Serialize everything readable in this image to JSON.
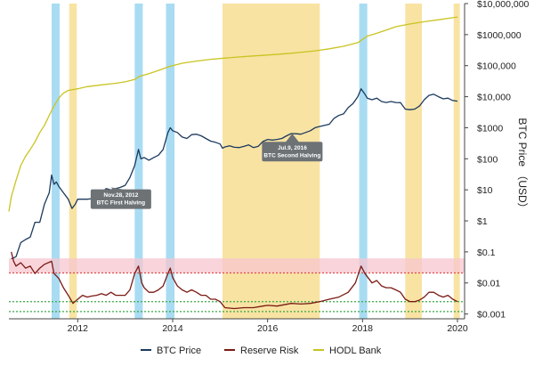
{
  "chart_data": {
    "type": "line",
    "y_scale": "log",
    "xlim": [
      2010.55,
      2020.15
    ],
    "ylim": [
      0.0007,
      10000000
    ],
    "y_axis_label": "BTC Price （USD）",
    "x_ticks": [
      {
        "value": 2012,
        "label": "2012"
      },
      {
        "value": 2014,
        "label": "2014"
      },
      {
        "value": 2016,
        "label": "2016"
      },
      {
        "value": 2018,
        "label": "2018"
      },
      {
        "value": 2020,
        "label": "2020"
      }
    ],
    "y_ticks": [
      {
        "value": 10000000,
        "label": "$10,000,000"
      },
      {
        "value": 1000000,
        "label": "$1000,000"
      },
      {
        "value": 100000,
        "label": "$100,000"
      },
      {
        "value": 10000,
        "label": "$10,000"
      },
      {
        "value": 1000,
        "label": "$1000"
      },
      {
        "value": 100,
        "label": "$100"
      },
      {
        "value": 10,
        "label": "$10"
      },
      {
        "value": 1,
        "label": "$1"
      },
      {
        "value": 0.1,
        "label": "$0.1"
      },
      {
        "value": 0.01,
        "label": "$0.01"
      },
      {
        "value": 0.001,
        "label": "$0.001"
      }
    ],
    "shaded_periods": [
      {
        "color": "#a9dcf2",
        "x": [
          2011.45,
          2011.62
        ]
      },
      {
        "color": "#f8e3a3",
        "x": [
          2011.82,
          2011.98
        ]
      },
      {
        "color": "#a9dcf2",
        "x": [
          2013.2,
          2013.37
        ]
      },
      {
        "color": "#a9dcf2",
        "x": [
          2013.86,
          2014.04
        ]
      },
      {
        "color": "#f8e3a3",
        "x": [
          2015.05,
          2017.1
        ]
      },
      {
        "color": "#a9dcf2",
        "x": [
          2017.93,
          2018.1
        ]
      },
      {
        "color": "#f8e3a3",
        "x": [
          2018.9,
          2019.25
        ]
      },
      {
        "color": "#f8e3a3",
        "x": [
          2019.92,
          2020.05
        ]
      }
    ],
    "reserve_risk_band": {
      "y": [
        0.021,
        0.062
      ],
      "color": "#f7c6cf"
    },
    "guide_lines": [
      {
        "y": 0.0025,
        "color": "#39a845",
        "style": "dotted"
      },
      {
        "y": 0.0012,
        "color": "#39a845",
        "style": "dotted"
      },
      {
        "y": 0.021,
        "color": "#e04b4b",
        "style": "dotted"
      }
    ],
    "annotations": [
      {
        "x": 2012.91,
        "y": 5,
        "anchor_x": 2012.7,
        "anchor_y": 12,
        "lines": [
          "Nov.28, 2012",
          "BTC First Halving"
        ]
      },
      {
        "x": 2016.52,
        "y": 170,
        "anchor_x": 2016.52,
        "anchor_y": 650,
        "lines": [
          "Jul.9, 2016",
          "BTC Second Halving"
        ]
      }
    ],
    "series": [
      {
        "name": "BTC Price",
        "color": "#1c3a5e",
        "points": [
          [
            2010.6,
            0.06
          ],
          [
            2010.7,
            0.07
          ],
          [
            2010.8,
            0.2
          ],
          [
            2010.9,
            0.25
          ],
          [
            2011.0,
            0.3
          ],
          [
            2011.1,
            0.9
          ],
          [
            2011.2,
            0.9
          ],
          [
            2011.3,
            3.5
          ],
          [
            2011.4,
            8
          ],
          [
            2011.45,
            30
          ],
          [
            2011.5,
            15
          ],
          [
            2011.55,
            18
          ],
          [
            2011.6,
            13
          ],
          [
            2011.7,
            8
          ],
          [
            2011.8,
            5
          ],
          [
            2011.88,
            2.5
          ],
          [
            2011.95,
            3.5
          ],
          [
            2012.0,
            5
          ],
          [
            2012.1,
            5
          ],
          [
            2012.2,
            5
          ],
          [
            2012.3,
            5.2
          ],
          [
            2012.4,
            6
          ],
          [
            2012.5,
            8
          ],
          [
            2012.6,
            11
          ],
          [
            2012.7,
            10
          ],
          [
            2012.8,
            11
          ],
          [
            2012.9,
            12
          ],
          [
            2013.0,
            14
          ],
          [
            2013.1,
            25
          ],
          [
            2013.2,
            60
          ],
          [
            2013.28,
            200
          ],
          [
            2013.33,
            100
          ],
          [
            2013.4,
            110
          ],
          [
            2013.5,
            90
          ],
          [
            2013.6,
            110
          ],
          [
            2013.7,
            130
          ],
          [
            2013.8,
            200
          ],
          [
            2013.9,
            700
          ],
          [
            2013.95,
            1000
          ],
          [
            2014.0,
            800
          ],
          [
            2014.1,
            700
          ],
          [
            2014.2,
            500
          ],
          [
            2014.3,
            450
          ],
          [
            2014.4,
            600
          ],
          [
            2014.5,
            620
          ],
          [
            2014.6,
            550
          ],
          [
            2014.7,
            450
          ],
          [
            2014.8,
            370
          ],
          [
            2014.9,
            340
          ],
          [
            2015.0,
            300
          ],
          [
            2015.05,
            220
          ],
          [
            2015.1,
            240
          ],
          [
            2015.2,
            260
          ],
          [
            2015.3,
            235
          ],
          [
            2015.4,
            230
          ],
          [
            2015.5,
            250
          ],
          [
            2015.6,
            280
          ],
          [
            2015.7,
            230
          ],
          [
            2015.8,
            250
          ],
          [
            2015.9,
            360
          ],
          [
            2016.0,
            420
          ],
          [
            2016.1,
            400
          ],
          [
            2016.2,
            420
          ],
          [
            2016.3,
            450
          ],
          [
            2016.4,
            550
          ],
          [
            2016.5,
            650
          ],
          [
            2016.6,
            640
          ],
          [
            2016.7,
            620
          ],
          [
            2016.8,
            700
          ],
          [
            2016.9,
            800
          ],
          [
            2017.0,
            1000
          ],
          [
            2017.1,
            1100
          ],
          [
            2017.2,
            1200
          ],
          [
            2017.3,
            1300
          ],
          [
            2017.4,
            2000
          ],
          [
            2017.5,
            2500
          ],
          [
            2017.6,
            2800
          ],
          [
            2017.7,
            4500
          ],
          [
            2017.8,
            6000
          ],
          [
            2017.9,
            10000
          ],
          [
            2017.97,
            18000
          ],
          [
            2018.05,
            12000
          ],
          [
            2018.1,
            9000
          ],
          [
            2018.2,
            8000
          ],
          [
            2018.3,
            9000
          ],
          [
            2018.4,
            7000
          ],
          [
            2018.5,
            6500
          ],
          [
            2018.6,
            7000
          ],
          [
            2018.7,
            6500
          ],
          [
            2018.8,
            6400
          ],
          [
            2018.9,
            4000
          ],
          [
            2019.0,
            3800
          ],
          [
            2019.1,
            4000
          ],
          [
            2019.2,
            5000
          ],
          [
            2019.3,
            8000
          ],
          [
            2019.4,
            11000
          ],
          [
            2019.5,
            12000
          ],
          [
            2019.6,
            10000
          ],
          [
            2019.7,
            8500
          ],
          [
            2019.8,
            9000
          ],
          [
            2019.9,
            7500
          ],
          [
            2020.0,
            7200
          ]
        ]
      },
      {
        "name": "Reserve Risk",
        "color": "#7a1a14",
        "points": [
          [
            2010.6,
            0.1
          ],
          [
            2010.65,
            0.05
          ],
          [
            2010.7,
            0.035
          ],
          [
            2010.8,
            0.045
          ],
          [
            2010.9,
            0.03
          ],
          [
            2011.0,
            0.035
          ],
          [
            2011.1,
            0.02
          ],
          [
            2011.2,
            0.03
          ],
          [
            2011.3,
            0.04
          ],
          [
            2011.45,
            0.05
          ],
          [
            2011.5,
            0.02
          ],
          [
            2011.6,
            0.014
          ],
          [
            2011.7,
            0.007
          ],
          [
            2011.8,
            0.004
          ],
          [
            2011.9,
            0.0022
          ],
          [
            2012.0,
            0.003
          ],
          [
            2012.1,
            0.004
          ],
          [
            2012.2,
            0.0035
          ],
          [
            2012.3,
            0.0038
          ],
          [
            2012.4,
            0.004
          ],
          [
            2012.5,
            0.0045
          ],
          [
            2012.6,
            0.004
          ],
          [
            2012.7,
            0.005
          ],
          [
            2012.8,
            0.004
          ],
          [
            2012.9,
            0.004
          ],
          [
            2013.0,
            0.004
          ],
          [
            2013.1,
            0.006
          ],
          [
            2013.2,
            0.02
          ],
          [
            2013.28,
            0.035
          ],
          [
            2013.35,
            0.01
          ],
          [
            2013.4,
            0.007
          ],
          [
            2013.5,
            0.005
          ],
          [
            2013.6,
            0.005
          ],
          [
            2013.7,
            0.006
          ],
          [
            2013.8,
            0.008
          ],
          [
            2013.9,
            0.02
          ],
          [
            2013.95,
            0.03
          ],
          [
            2014.0,
            0.015
          ],
          [
            2014.1,
            0.008
          ],
          [
            2014.2,
            0.006
          ],
          [
            2014.3,
            0.005
          ],
          [
            2014.4,
            0.006
          ],
          [
            2014.5,
            0.005
          ],
          [
            2014.6,
            0.004
          ],
          [
            2014.7,
            0.004
          ],
          [
            2014.8,
            0.003
          ],
          [
            2014.9,
            0.003
          ],
          [
            2015.0,
            0.0025
          ],
          [
            2015.1,
            0.0016
          ],
          [
            2015.3,
            0.0015
          ],
          [
            2015.5,
            0.0016
          ],
          [
            2015.7,
            0.0016
          ],
          [
            2015.9,
            0.0018
          ],
          [
            2016.0,
            0.0019
          ],
          [
            2016.2,
            0.0018
          ],
          [
            2016.5,
            0.0022
          ],
          [
            2016.7,
            0.0021
          ],
          [
            2016.9,
            0.0022
          ],
          [
            2017.1,
            0.0025
          ],
          [
            2017.3,
            0.003
          ],
          [
            2017.5,
            0.0035
          ],
          [
            2017.7,
            0.005
          ],
          [
            2017.85,
            0.01
          ],
          [
            2017.97,
            0.035
          ],
          [
            2018.05,
            0.02
          ],
          [
            2018.2,
            0.01
          ],
          [
            2018.3,
            0.012
          ],
          [
            2018.4,
            0.008
          ],
          [
            2018.5,
            0.007
          ],
          [
            2018.6,
            0.007
          ],
          [
            2018.7,
            0.006
          ],
          [
            2018.8,
            0.005
          ],
          [
            2018.9,
            0.003
          ],
          [
            2019.0,
            0.0025
          ],
          [
            2019.1,
            0.0025
          ],
          [
            2019.2,
            0.0028
          ],
          [
            2019.3,
            0.0035
          ],
          [
            2019.4,
            0.005
          ],
          [
            2019.5,
            0.005
          ],
          [
            2019.6,
            0.004
          ],
          [
            2019.7,
            0.0035
          ],
          [
            2019.8,
            0.004
          ],
          [
            2019.9,
            0.003
          ],
          [
            2020.0,
            0.0025
          ]
        ]
      },
      {
        "name": "HODL Bank",
        "color": "#c9c421",
        "points": [
          [
            2010.55,
            2
          ],
          [
            2010.6,
            6
          ],
          [
            2010.7,
            20
          ],
          [
            2010.8,
            60
          ],
          [
            2010.9,
            120
          ],
          [
            2011.0,
            200
          ],
          [
            2011.1,
            350
          ],
          [
            2011.2,
            700
          ],
          [
            2011.3,
            1200
          ],
          [
            2011.4,
            2500
          ],
          [
            2011.5,
            5000
          ],
          [
            2011.6,
            9000
          ],
          [
            2011.7,
            13000
          ],
          [
            2011.8,
            16000
          ],
          [
            2012.0,
            18000
          ],
          [
            2012.2,
            21000
          ],
          [
            2012.5,
            24000
          ],
          [
            2012.8,
            27000
          ],
          [
            2013.0,
            30000
          ],
          [
            2013.2,
            36000
          ],
          [
            2013.3,
            45000
          ],
          [
            2013.5,
            55000
          ],
          [
            2013.7,
            70000
          ],
          [
            2013.9,
            90000
          ],
          [
            2014.0,
            100000
          ],
          [
            2014.2,
            120000
          ],
          [
            2014.5,
            140000
          ],
          [
            2014.8,
            160000
          ],
          [
            2015.0,
            170000
          ],
          [
            2015.3,
            185000
          ],
          [
            2015.6,
            200000
          ],
          [
            2016.0,
            220000
          ],
          [
            2016.5,
            250000
          ],
          [
            2017.0,
            300000
          ],
          [
            2017.3,
            350000
          ],
          [
            2017.6,
            420000
          ],
          [
            2017.9,
            550000
          ],
          [
            2018.0,
            700000
          ],
          [
            2018.1,
            900000
          ],
          [
            2018.3,
            1100000
          ],
          [
            2018.5,
            1400000
          ],
          [
            2018.7,
            1800000
          ],
          [
            2019.0,
            2200000
          ],
          [
            2019.3,
            2600000
          ],
          [
            2019.6,
            3000000
          ],
          [
            2019.9,
            3500000
          ],
          [
            2020.0,
            3700000
          ]
        ]
      }
    ],
    "legend": {
      "placement": "bottom",
      "items": [
        {
          "name": "BTC Price",
          "color": "#1c3a5e"
        },
        {
          "name": "Reserve Risk",
          "color": "#7a1a14"
        },
        {
          "name": "HODL Bank",
          "color": "#c9c421"
        }
      ]
    }
  }
}
